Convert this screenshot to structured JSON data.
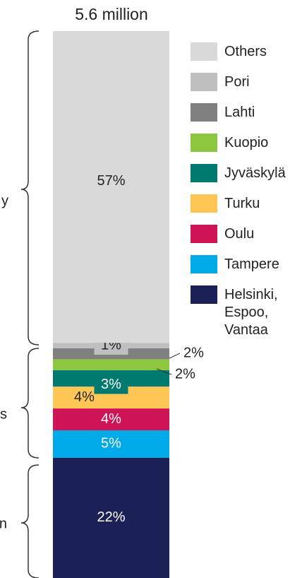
{
  "chart_data": {
    "type": "stacked-bar",
    "title": "5.6 million",
    "annotations": [
      "y",
      "s",
      "n"
    ],
    "ylim": [
      0,
      100
    ],
    "series": [
      {
        "name": "Helsinki, Espoo, Vantaa",
        "color": "#1b2157",
        "values": [
          22
        ],
        "value_labels": [
          "22%"
        ]
      },
      {
        "name": "Tampere",
        "color": "#00a9e8",
        "values": [
          5
        ],
        "value_labels": [
          "5%"
        ]
      },
      {
        "name": "Oulu",
        "color": "#cf1456",
        "values": [
          4
        ],
        "value_labels": [
          "4%"
        ]
      },
      {
        "name": "Turku",
        "color": "#fdc655",
        "values": [
          4
        ],
        "value_labels": [
          "4%"
        ]
      },
      {
        "name": "Jyväskylä",
        "color": "#007a6e",
        "values": [
          3
        ],
        "value_labels": [
          "3%"
        ]
      },
      {
        "name": "Kuopio",
        "color": "#8dc63f",
        "values": [
          2
        ],
        "value_labels": [
          "2%"
        ]
      },
      {
        "name": "Lahti",
        "color": "#808080",
        "values": [
          2
        ],
        "value_labels": [
          "2%"
        ]
      },
      {
        "name": "Pori",
        "color": "#bfbfbf",
        "values": [
          1
        ],
        "value_labels": [
          "1%"
        ]
      },
      {
        "name": "Others",
        "color": "#d9d9d9",
        "values": [
          57
        ],
        "value_labels": [
          "57%"
        ]
      }
    ]
  }
}
